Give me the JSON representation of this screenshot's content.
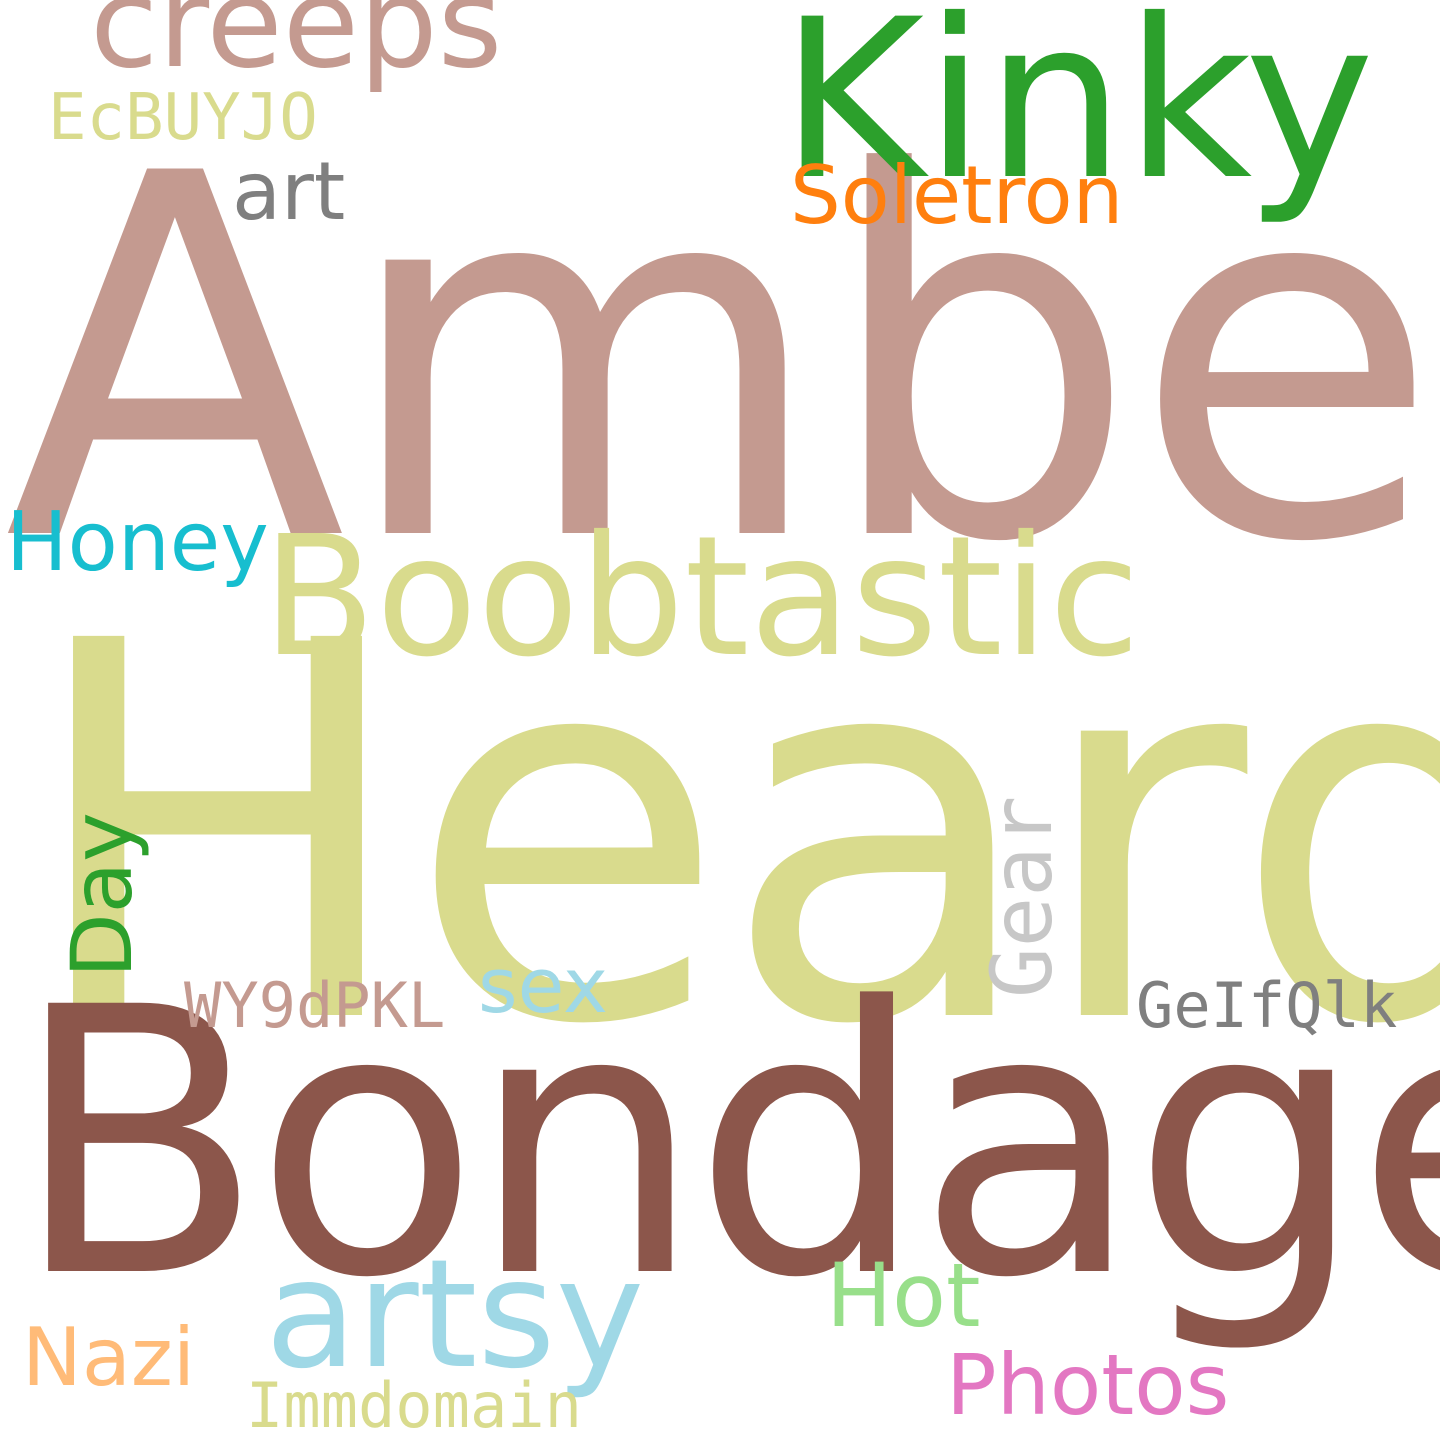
{
  "words": {
    "amber": {
      "text": "Amber",
      "color": "#c49a90"
    },
    "heard": {
      "text": "Heard",
      "color": "#d9db8d"
    },
    "bondage": {
      "text": "Bondage",
      "color": "#8c564b"
    },
    "kinky": {
      "text": "Kinky",
      "color": "#2ca02c"
    },
    "boobtastic": {
      "text": "Boobtastic",
      "color": "#d9db8d"
    },
    "creeps": {
      "text": "creeps",
      "color": "#c49a90"
    },
    "artsy": {
      "text": "artsy",
      "color": "#9fd8e6"
    },
    "soletron": {
      "text": "Soletron",
      "color": "#ff7f0e"
    },
    "art": {
      "text": "art",
      "color": "#7f7f7f"
    },
    "ecbuyjo": {
      "text": "EcBUYJO",
      "color": "#d9db8d"
    },
    "honey": {
      "text": "Honey",
      "color": "#17becf"
    },
    "day": {
      "text": "Day",
      "color": "#2ca02c"
    },
    "gear": {
      "text": "Gear",
      "color": "#c7c7c7"
    },
    "sex": {
      "text": "sex",
      "color": "#9fd8e6"
    },
    "wy9dpkl": {
      "text": "WY9dPKL",
      "color": "#c49a90"
    },
    "geifqlk": {
      "text": "GeIfQlk",
      "color": "#7f7f7f"
    },
    "hot": {
      "text": "Hot",
      "color": "#98df8a"
    },
    "nazi": {
      "text": "Nazi",
      "color": "#ffbb78"
    },
    "photos": {
      "text": "Photos",
      "color": "#e377c2"
    },
    "immdomain": {
      "text": "Immdomain",
      "color": "#d9db8d"
    }
  }
}
